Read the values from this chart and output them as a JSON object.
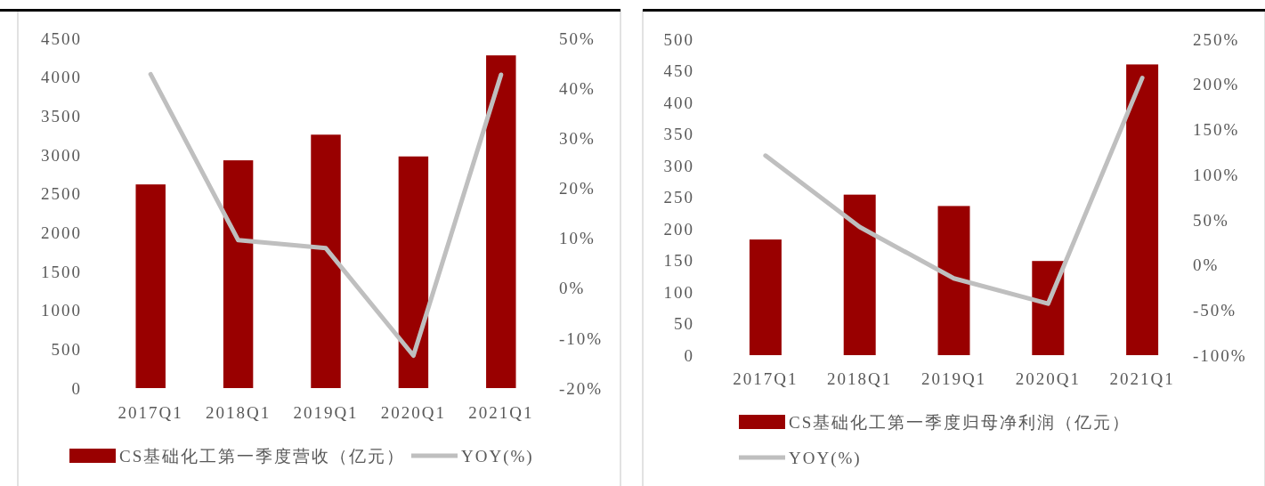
{
  "chart_data": [
    {
      "type": "bar",
      "categories": [
        "2017Q1",
        "2018Q1",
        "2019Q1",
        "2020Q1",
        "2021Q1"
      ],
      "series": [
        {
          "name": "CS基础化工第一季度营收（亿元）",
          "color": "#990000",
          "values": [
            2620,
            2930,
            3260,
            2980,
            4280
          ]
        },
        {
          "name": "YOY(%)",
          "type": "line",
          "axis": "y2",
          "color": "#bfbfbf",
          "values": [
            42.8,
            9.6,
            8.0,
            -13.5,
            42.7
          ]
        }
      ],
      "ylim": [
        0,
        4500
      ],
      "yticks": [
        0,
        500,
        1000,
        1500,
        2000,
        2500,
        3000,
        3500,
        4000,
        4500
      ],
      "y2lim": [
        -20,
        50
      ],
      "y2ticks": [
        {
          "value": -20,
          "label": "-20%"
        },
        {
          "value": -10,
          "label": "-10%"
        },
        {
          "value": 0,
          "label": "0%"
        },
        {
          "value": 10,
          "label": "10%"
        },
        {
          "value": 20,
          "label": "20%"
        },
        {
          "value": 30,
          "label": "30%"
        },
        {
          "value": 40,
          "label": "40%"
        },
        {
          "value": 50,
          "label": "50%"
        }
      ],
      "legend": "bottom"
    },
    {
      "type": "bar",
      "categories": [
        "2017Q1",
        "2018Q1",
        "2019Q1",
        "2020Q1",
        "2021Q1"
      ],
      "series": [
        {
          "name": "CS基础化工第一季度归母净利润（亿元）",
          "color": "#990000",
          "values": [
            183,
            254,
            236,
            149,
            460
          ]
        },
        {
          "name": "YOY(%)",
          "type": "line",
          "axis": "y2",
          "color": "#bfbfbf",
          "values": [
            121,
            42,
            -15,
            -43,
            207
          ]
        }
      ],
      "ylim": [
        0,
        500
      ],
      "yticks": [
        0,
        50,
        100,
        150,
        200,
        250,
        300,
        350,
        400,
        450,
        500
      ],
      "y2lim": [
        -100,
        250
      ],
      "y2ticks": [
        {
          "value": -100,
          "label": "-100%"
        },
        {
          "value": -50,
          "label": "-50%"
        },
        {
          "value": 0,
          "label": "0%"
        },
        {
          "value": 50,
          "label": "50%"
        },
        {
          "value": 100,
          "label": "100%"
        },
        {
          "value": 150,
          "label": "150%"
        },
        {
          "value": 200,
          "label": "200%"
        },
        {
          "value": 250,
          "label": "250%"
        }
      ],
      "legend": "bottom"
    }
  ]
}
